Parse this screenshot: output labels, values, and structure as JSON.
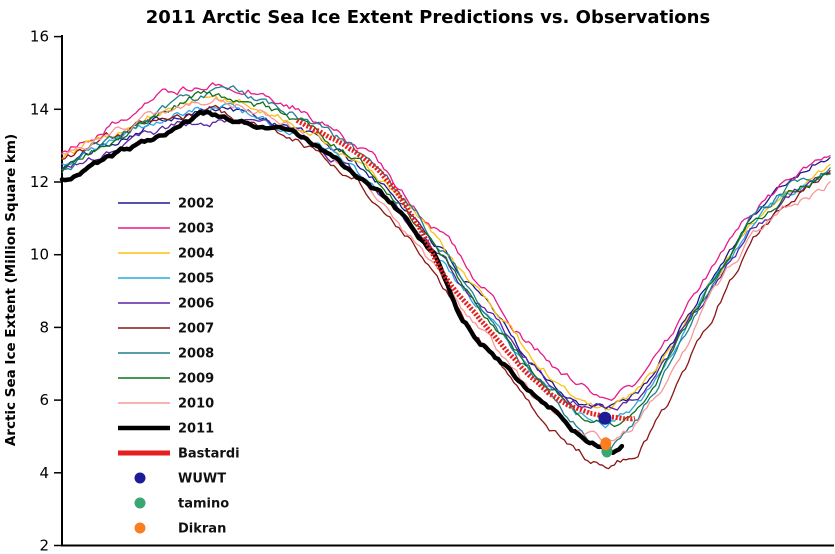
{
  "title": "2011 Arctic Sea Ice Extent Predictions vs. Observations",
  "y_axis": {
    "label": "Arctic Sea Ice Extent (Million Square km)",
    "ticks": [
      16,
      14,
      12,
      10,
      8,
      6,
      4,
      2
    ],
    "min": 2,
    "max": 16
  },
  "legend": {
    "items": [
      {
        "label": "2002",
        "color": "#1a1a8c",
        "swatch": "line",
        "weight": 1.5
      },
      {
        "label": "2003",
        "color": "#e8198b",
        "swatch": "line",
        "weight": 1.5
      },
      {
        "label": "2004",
        "color": "#fdc113",
        "swatch": "line",
        "weight": 1.5
      },
      {
        "label": "2005",
        "color": "#29a8e0",
        "swatch": "line",
        "weight": 1.5
      },
      {
        "label": "2006",
        "color": "#5b21a6",
        "swatch": "line",
        "weight": 1.5
      },
      {
        "label": "2007",
        "color": "#8c1515",
        "swatch": "line",
        "weight": 1.5
      },
      {
        "label": "2008",
        "color": "#1f7f8f",
        "swatch": "line",
        "weight": 1.5
      },
      {
        "label": "2009",
        "color": "#0e701e",
        "swatch": "line",
        "weight": 1.5
      },
      {
        "label": "2010",
        "color": "#f99897",
        "swatch": "line",
        "weight": 1.5
      },
      {
        "label": "2011",
        "color": "#000000",
        "swatch": "line",
        "weight": 4.5
      },
      {
        "label": "Bastardi",
        "color": "#e61e1e",
        "swatch": "line",
        "weight": 5
      },
      {
        "label": "WUWT",
        "color": "#1c1c96",
        "swatch": "dot"
      },
      {
        "label": "tamino",
        "color": "#3aa673",
        "swatch": "dot"
      },
      {
        "label": "Dikran",
        "color": "#fb7e20",
        "swatch": "dot"
      }
    ]
  },
  "chart_data": {
    "type": "line",
    "title": "2011 Arctic Sea Ice Extent Predictions vs. Observations",
    "xlabel": "",
    "ylabel": "Arctic Sea Ice Extent (Million Square km)",
    "ylim": [
      2,
      16
    ],
    "grid": false,
    "legend_position": "inside-left",
    "x_unit": "fraction of year (Jan 1 = 0, Dec 31 = 1)",
    "y_unit": "million square km",
    "x_grid": [
      0,
      0.04,
      0.08,
      0.115,
      0.15,
      0.186,
      0.22,
      0.26,
      0.3,
      0.34,
      0.38,
      0.42,
      0.46,
      0.5,
      0.54,
      0.575,
      0.61,
      0.645,
      0.675,
      0.695,
      0.71,
      0.725,
      0.75,
      0.79,
      0.84,
      0.895,
      0.95,
      1.0
    ],
    "series": [
      {
        "name": "2002",
        "color": "#1a1a8c",
        "width": 1.3,
        "y": [
          12.4,
          12.85,
          13.3,
          13.65,
          13.9,
          14.05,
          14.0,
          13.8,
          13.5,
          13.1,
          12.55,
          11.85,
          11.0,
          10.0,
          8.9,
          8.0,
          7.1,
          6.4,
          5.95,
          5.78,
          5.7,
          5.78,
          6.15,
          7.4,
          9.2,
          11.0,
          12.1,
          12.8
        ]
      },
      {
        "name": "2003",
        "color": "#e8198b",
        "width": 1.3,
        "y": [
          12.9,
          13.35,
          13.8,
          14.2,
          14.5,
          14.7,
          14.78,
          14.5,
          14.15,
          13.65,
          13.05,
          12.3,
          11.4,
          10.4,
          9.3,
          8.45,
          7.55,
          6.85,
          6.35,
          6.12,
          6.05,
          6.12,
          6.45,
          7.6,
          9.4,
          11.15,
          12.05,
          12.6
        ]
      },
      {
        "name": "2004",
        "color": "#fdc113",
        "width": 1.3,
        "y": [
          12.7,
          13.1,
          13.5,
          13.85,
          14.1,
          14.3,
          14.25,
          14.05,
          13.7,
          13.25,
          12.65,
          11.95,
          11.05,
          10.05,
          9.0,
          8.1,
          7.2,
          6.5,
          6.05,
          5.87,
          5.8,
          5.88,
          6.2,
          7.35,
          9.1,
          10.85,
          11.85,
          12.4
        ]
      },
      {
        "name": "2005",
        "color": "#29a8e0",
        "width": 1.3,
        "y": [
          12.5,
          12.85,
          13.25,
          13.6,
          13.85,
          14.0,
          13.95,
          13.7,
          13.4,
          12.95,
          12.35,
          11.6,
          10.7,
          9.7,
          8.6,
          7.7,
          6.8,
          6.1,
          5.6,
          5.4,
          5.32,
          5.42,
          5.85,
          7.1,
          8.95,
          10.75,
          11.75,
          12.2
        ]
      },
      {
        "name": "2006",
        "color": "#5b21a6",
        "width": 1.3,
        "y": [
          12.45,
          12.7,
          13.0,
          13.3,
          13.55,
          13.72,
          13.7,
          13.52,
          13.25,
          12.85,
          12.3,
          11.6,
          10.75,
          9.8,
          8.75,
          7.9,
          7.0,
          6.3,
          5.95,
          5.83,
          5.78,
          5.85,
          6.2,
          7.25,
          8.9,
          10.6,
          11.6,
          12.15
        ]
      },
      {
        "name": "2007",
        "color": "#8c1515",
        "width": 1.3,
        "y": [
          12.6,
          13.0,
          13.35,
          13.65,
          13.82,
          13.9,
          13.8,
          13.55,
          13.2,
          12.7,
          12.1,
          11.3,
          10.3,
          9.1,
          7.8,
          6.8,
          5.8,
          5.0,
          4.5,
          4.32,
          4.25,
          4.33,
          4.7,
          5.95,
          8.0,
          10.3,
          11.6,
          12.3
        ]
      },
      {
        "name": "2008",
        "color": "#1f7f8f",
        "width": 1.3,
        "y": [
          12.3,
          12.8,
          13.3,
          13.75,
          14.1,
          14.3,
          14.42,
          14.3,
          13.95,
          13.5,
          12.9,
          12.1,
          11.15,
          10.1,
          8.85,
          7.85,
          6.8,
          5.85,
          5.2,
          4.88,
          4.73,
          4.85,
          5.4,
          6.9,
          9.0,
          10.95,
          11.95,
          12.45
        ]
      },
      {
        "name": "2009",
        "color": "#0e701e",
        "width": 1.3,
        "y": [
          12.35,
          12.85,
          13.4,
          13.85,
          14.15,
          14.38,
          14.3,
          14.1,
          13.75,
          13.3,
          12.7,
          11.9,
          10.95,
          9.9,
          8.7,
          7.8,
          6.9,
          6.15,
          5.6,
          5.35,
          5.27,
          5.38,
          5.85,
          7.1,
          9.0,
          10.8,
          11.8,
          12.3
        ]
      },
      {
        "name": "2010",
        "color": "#f99897",
        "width": 1.3,
        "y": [
          12.75,
          13.1,
          13.45,
          13.8,
          14.05,
          14.25,
          14.3,
          14.0,
          13.55,
          12.95,
          12.2,
          11.3,
          10.3,
          9.2,
          8.05,
          7.1,
          6.15,
          5.45,
          5.05,
          4.92,
          4.86,
          4.95,
          5.45,
          6.7,
          8.6,
          10.4,
          11.4,
          12.0
        ]
      }
    ],
    "observed_2011": {
      "name": "2011",
      "color": "#000000",
      "width": 4.5,
      "x": [
        0,
        0.05,
        0.1,
        0.145,
        0.186,
        0.215,
        0.25,
        0.285,
        0.316,
        0.349,
        0.381,
        0.414,
        0.433,
        0.453,
        0.472,
        0.492,
        0.518,
        0.544,
        0.57,
        0.596,
        0.622,
        0.648,
        0.674,
        0.694,
        0.71,
        0.72,
        0.729
      ],
      "y": [
        12.05,
        12.55,
        13.05,
        13.5,
        13.85,
        13.7,
        13.6,
        13.4,
        13.2,
        12.75,
        12.2,
        11.7,
        11.3,
        10.9,
        10.35,
        9.8,
        8.35,
        7.65,
        7.1,
        6.6,
        6.1,
        5.6,
        5.05,
        4.78,
        4.58,
        4.53,
        4.68
      ]
    },
    "bastardi_prediction": {
      "name": "Bastardi",
      "color": "#e61e1e",
      "width": 5,
      "dash": "2 1.7",
      "x": [
        0.306,
        0.349,
        0.381,
        0.414,
        0.433,
        0.453,
        0.472,
        0.492,
        0.512,
        0.531,
        0.557,
        0.583,
        0.609,
        0.635,
        0.661,
        0.687,
        0.71,
        0.729,
        0.746
      ],
      "y": [
        13.7,
        13.25,
        12.85,
        12.3,
        11.8,
        11.15,
        10.5,
        9.6,
        9.0,
        8.55,
        7.9,
        7.25,
        6.65,
        6.15,
        5.85,
        5.65,
        5.55,
        5.5,
        5.5
      ]
    },
    "point_predictions": [
      {
        "name": "WUWT",
        "color": "#1c1c96",
        "x": 0.707,
        "value": 5.5,
        "rx": 6.5,
        "ry": 6.5
      },
      {
        "name": "tamino",
        "color": "#3aa673",
        "x": 0.7095,
        "value": 4.6,
        "rx": 5.5,
        "ry": 6.5
      },
      {
        "name": "Dikran",
        "color": "#fb7e20",
        "x": 0.708,
        "value": 4.8,
        "rx": 5.5,
        "ry": 6.5
      }
    ]
  }
}
